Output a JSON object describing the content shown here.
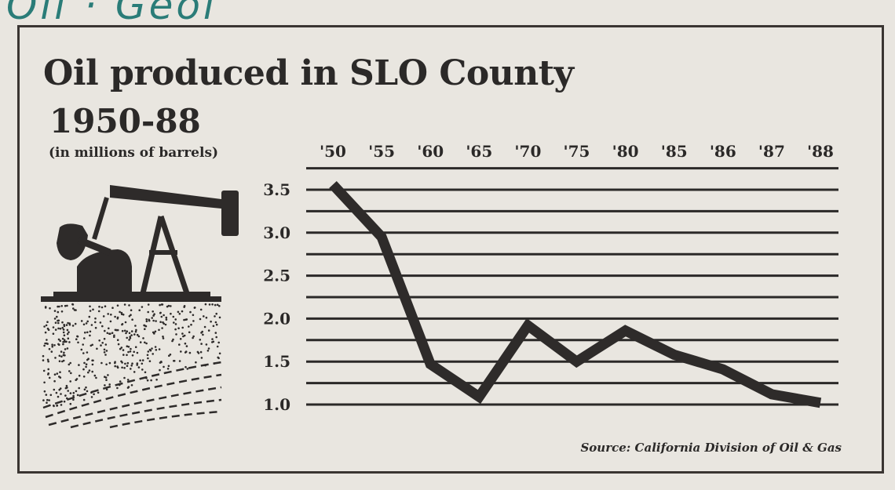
{
  "annotation": "Oil · Geol",
  "colors": {
    "ink": "#2b2928",
    "paper": "#e9e6e0",
    "handwriting": "#2a7c78"
  },
  "illustration": {
    "icon": "oil-pump-jack-icon"
  },
  "chart_data": {
    "type": "line",
    "title": "Oil produced in SLO County",
    "subtitle": "1950-88",
    "ylabel": "(in millions of barrels)",
    "xlabel": "",
    "categories": [
      "'50",
      "'55",
      "'60",
      "'65",
      "'70",
      "'75",
      "'80",
      "'85",
      "'86",
      "'87",
      "'88"
    ],
    "values": [
      3.56,
      2.95,
      1.47,
      1.09,
      1.92,
      1.5,
      1.86,
      1.58,
      1.41,
      1.12,
      1.02
    ],
    "yticks": [
      "1.0",
      "1.5",
      "2.0",
      "2.5",
      "3.0",
      "3.5"
    ],
    "ylim": [
      1.0,
      3.75
    ],
    "grid": true,
    "x_axis_position": "top",
    "source": "Source: California Division of Oil & Gas"
  }
}
